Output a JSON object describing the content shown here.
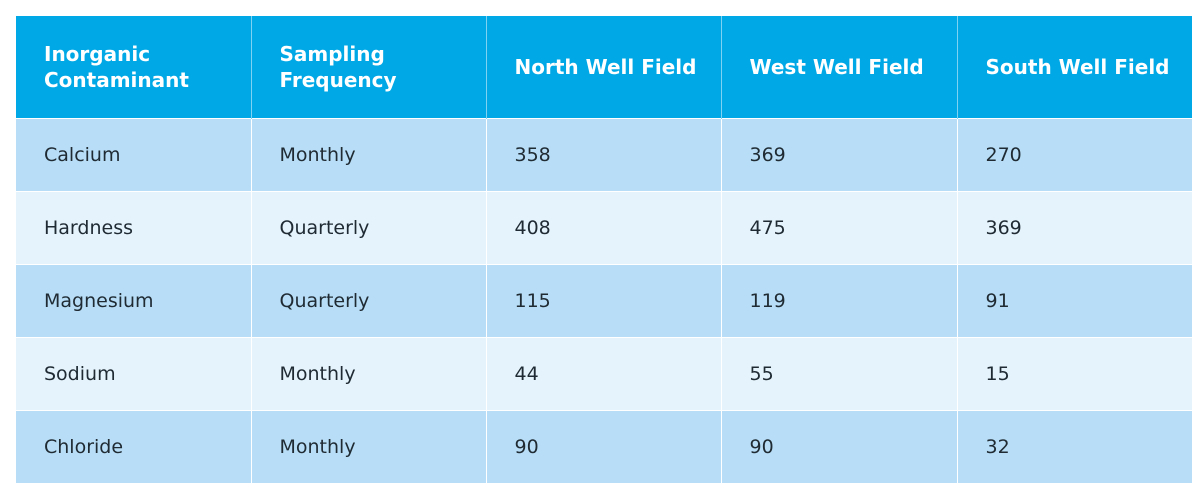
{
  "table": {
    "headers": [
      "Inorganic Contaminant",
      "Sampling Frequency",
      "North Well Field",
      "West Well Field",
      "South Well Field"
    ],
    "rows": [
      [
        "Calcium",
        "Monthly",
        "358",
        "369",
        "270"
      ],
      [
        "Hardness",
        "Quarterly",
        "408",
        "475",
        "369"
      ],
      [
        "Magnesium",
        "Quarterly",
        "115",
        "119",
        "91"
      ],
      [
        "Sodium",
        "Monthly",
        "44",
        "55",
        "15"
      ],
      [
        "Chloride",
        "Monthly",
        "90",
        "90",
        "32"
      ]
    ]
  },
  "colors": {
    "header_bg": "#00a8e6",
    "row_odd_bg": "#b7def6",
    "row_even_bg": "#e4f3fc"
  }
}
